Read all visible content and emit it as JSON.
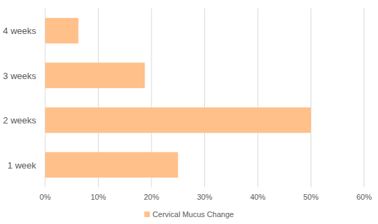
{
  "chart_data": {
    "type": "bar",
    "orientation": "horizontal",
    "categories": [
      "1 week",
      "2 weeks",
      "3 weeks",
      "4 weeks"
    ],
    "series": [
      {
        "name": "Cervical Mucus Change",
        "color": "#ffc08a",
        "values": [
          25,
          50,
          18.75,
          6.25
        ]
      }
    ],
    "xlim": [
      0,
      60
    ],
    "xticks": [
      {
        "value": 0,
        "label": "0%"
      },
      {
        "value": 10,
        "label": "10%"
      },
      {
        "value": 20,
        "label": "20%"
      },
      {
        "value": 30,
        "label": "30%"
      },
      {
        "value": 40,
        "label": "40%"
      },
      {
        "value": 50,
        "label": "50%"
      },
      {
        "value": 60,
        "label": "60%"
      }
    ],
    "grid": true,
    "legend": "bottom"
  }
}
